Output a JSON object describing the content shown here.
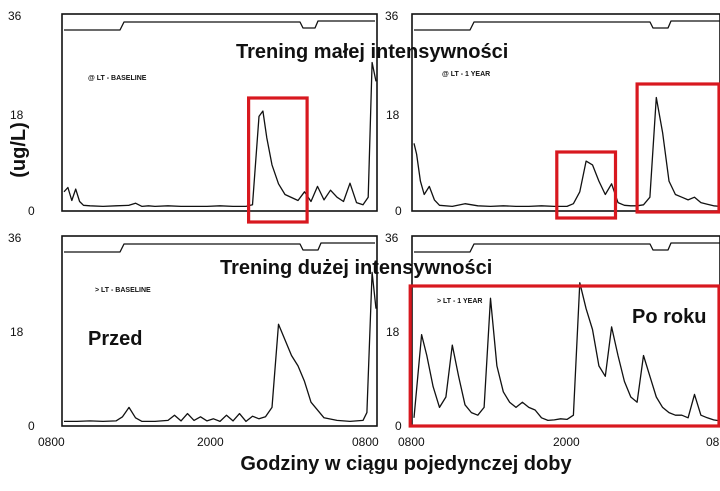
{
  "title_top": "Trening małej intensywności",
  "title_bottom": "Trening dużej intensywności",
  "ylabel": "(ug/L)",
  "xlabel": "Godziny w ciągu pojedynczej doby",
  "label_before": "Przed",
  "label_after": "Po roku",
  "colors": {
    "highlight": "#d8181f",
    "trace": "#111111"
  },
  "chart_data": [
    {
      "type": "line",
      "panel": "top-left",
      "caption": "@ LT - BASELINE",
      "yticks": [
        "0",
        "18",
        "36"
      ],
      "ylim": [
        0,
        36
      ],
      "xlim": [
        0,
        24
      ],
      "series": [
        {
          "x": [
            0,
            0.3,
            0.6,
            0.9,
            1.2,
            1.5,
            2,
            3,
            4,
            5,
            5.5,
            6,
            6.5,
            7,
            8,
            9,
            10,
            11,
            12,
            13,
            14,
            14.5,
            15,
            15.3,
            15.6,
            16,
            16.5,
            17,
            18,
            18.5,
            19,
            19.5,
            20,
            20.5,
            21,
            21.5,
            22,
            22.5,
            23,
            23.4,
            23.7,
            24
          ],
          "y": [
            3,
            3.8,
            1.4,
            3.5,
            1.2,
            0.5,
            0.4,
            0.3,
            0.4,
            0.5,
            0.9,
            0.3,
            0.4,
            0.3,
            0.4,
            0.3,
            0.3,
            0.3,
            0.4,
            0.3,
            0.3,
            0.6,
            17,
            18,
            13,
            8,
            4.5,
            2.5,
            1.4,
            3,
            1.2,
            4,
            1.5,
            3.3,
            2,
            1.2,
            4.6,
            1,
            0.6,
            2,
            27,
            23.5
          ]
        }
      ],
      "highlights": [
        [
          14.2,
          18.7
        ]
      ]
    },
    {
      "type": "line",
      "panel": "top-right",
      "caption": "@ LT - 1 YEAR",
      "yticks": [
        "0",
        "18",
        "36"
      ],
      "ylim": [
        0,
        36
      ],
      "xlim": [
        0,
        24
      ],
      "series": [
        {
          "x": [
            0,
            0.2,
            0.5,
            0.8,
            1.2,
            1.6,
            2,
            3,
            4,
            5,
            6,
            7,
            8,
            9,
            10,
            11,
            12,
            12.5,
            13,
            13.5,
            14,
            14.5,
            15,
            15.5,
            16,
            16.5,
            17,
            17.5,
            18,
            18.5,
            19,
            19.5,
            20,
            20.5,
            21,
            21.5,
            22,
            22.5,
            23,
            23.5,
            24
          ],
          "y": [
            12,
            10,
            5,
            2.5,
            4,
            1.5,
            0.5,
            0.3,
            0.8,
            0.4,
            0.3,
            0.4,
            0.3,
            0.3,
            0.4,
            0.3,
            0.3,
            0.8,
            3,
            8.7,
            8,
            5,
            2.5,
            4.5,
            1,
            0.5,
            0.4,
            0.4,
            0.6,
            2,
            20.5,
            14,
            5,
            2.5,
            2,
            1.5,
            2,
            1,
            0.7,
            0.4,
            0.3
          ]
        }
      ],
      "highlights": [
        [
          11.2,
          15.8
        ],
        [
          17.5,
          24
        ]
      ]
    },
    {
      "type": "line",
      "panel": "bottom-left",
      "caption": "> LT - BASELINE",
      "yticks": [
        "0",
        "18",
        "36"
      ],
      "xticks": [
        "0800",
        "2000",
        "0800"
      ],
      "ylim": [
        0,
        36
      ],
      "xlim": [
        0,
        24
      ],
      "series": [
        {
          "x": [
            0,
            1,
            2,
            3,
            4,
            4.5,
            5,
            5.5,
            6,
            7,
            8,
            8.5,
            9,
            9.5,
            10,
            10.5,
            11,
            11.5,
            12,
            12.5,
            13,
            13.5,
            14,
            14.5,
            15,
            15.5,
            16,
            16.5,
            17,
            17.5,
            18,
            18.5,
            19,
            20,
            21,
            22,
            23,
            23.3,
            23.7,
            24
          ],
          "y": [
            0.3,
            0.3,
            0.4,
            0.3,
            0.4,
            1.2,
            3,
            1,
            0.3,
            0.3,
            0.5,
            1.5,
            0.4,
            1.8,
            0.5,
            1.2,
            0.4,
            0.8,
            0.3,
            1.5,
            0.4,
            1.8,
            0.3,
            1.3,
            0.8,
            1.2,
            3,
            19,
            16,
            13,
            11,
            8,
            4,
            1,
            0.5,
            0.3,
            0.5,
            2,
            29,
            22
          ]
        }
      ],
      "highlights": [
        [
          14.5,
          18.9
        ]
      ]
    },
    {
      "type": "line",
      "panel": "bottom-right",
      "caption": "> LT - 1 YEAR",
      "yticks": [
        "0",
        "18",
        "36"
      ],
      "xticks": [
        "0800",
        "2000",
        "08"
      ],
      "ylim": [
        0,
        36
      ],
      "xlim": [
        0,
        24
      ],
      "series": [
        {
          "x": [
            0,
            0.3,
            0.6,
            1,
            1.5,
            2,
            2.5,
            3,
            3.5,
            4,
            4.5,
            5,
            5.5,
            6,
            6.5,
            7,
            7.5,
            8,
            8.5,
            9,
            9.5,
            10,
            10.5,
            11,
            11.5,
            12,
            12.5,
            13,
            13.5,
            14,
            14.5,
            15,
            15.5,
            16,
            16.5,
            17,
            17.5,
            18,
            18.5,
            19,
            19.5,
            20,
            20.5,
            21,
            21.5,
            22,
            22.5,
            23,
            23.5,
            24
          ],
          "y": [
            1,
            9,
            17,
            13,
            7,
            3,
            5,
            15,
            9,
            3.5,
            2,
            1.5,
            3,
            24,
            11,
            6,
            4,
            3,
            4,
            3,
            2.5,
            1,
            0.5,
            0.6,
            0.8,
            0.7,
            1.5,
            27,
            22,
            18,
            11,
            9,
            18.5,
            13,
            8,
            5,
            4,
            13,
            9,
            5,
            3,
            2,
            1.5,
            1.5,
            1,
            5.5,
            1.5,
            1,
            0.6,
            0.4
          ]
        }
      ],
      "highlights": [
        [
          -0.3,
          24.5
        ]
      ]
    }
  ]
}
